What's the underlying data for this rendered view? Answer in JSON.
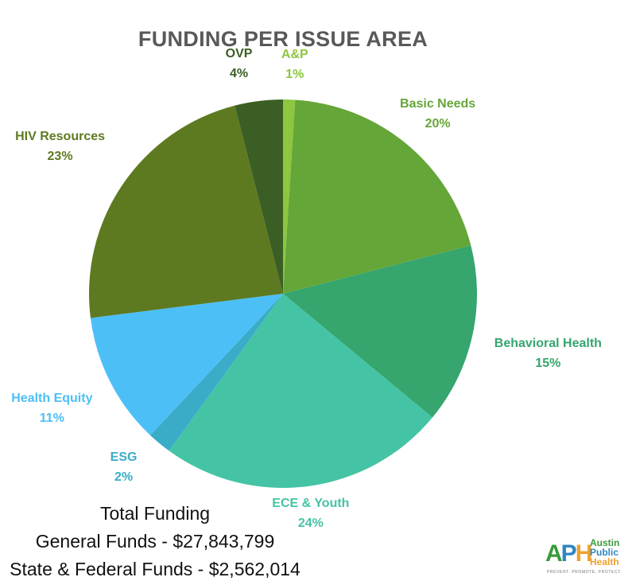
{
  "chart_data": {
    "type": "pie",
    "title": "FUNDING PER ISSUE AREA",
    "slices": [
      {
        "label": "A&P",
        "value": 1,
        "value_label": "1%",
        "color": "#8DC63F",
        "label_color": "#8DC63F"
      },
      {
        "label": "Basic Needs",
        "value": 20,
        "value_label": "20%",
        "color": "#65A638",
        "label_color": "#65A638"
      },
      {
        "label": "Behavioral Health",
        "value": 15,
        "value_label": "15%",
        "color": "#36A56E",
        "label_color": "#36A56E"
      },
      {
        "label": "ECE & Youth",
        "value": 24,
        "value_label": "24%",
        "color": "#44C4A4",
        "label_color": "#44C4A4"
      },
      {
        "label": "ESG",
        "value": 2,
        "value_label": "2%",
        "color": "#3AACC8",
        "label_color": "#3AACC8"
      },
      {
        "label": "Health Equity",
        "value": 11,
        "value_label": "11%",
        "color": "#4DBFF7",
        "label_color": "#4DBFF7"
      },
      {
        "label": "HIV Resources",
        "value": 23,
        "value_label": "23%",
        "color": "#5E7A21",
        "label_color": "#5E7A21"
      },
      {
        "label": "OVP",
        "value": 4,
        "value_label": "4%",
        "color": "#3A5E24",
        "label_color": "#3A5E24"
      }
    ]
  },
  "totals": {
    "heading": "Total Funding",
    "general": "General Funds - $27,843,799",
    "state_federal": "State & Federal Funds - $2,562,014"
  },
  "logo": {
    "mark": "APH",
    "line1": "Austin",
    "line2": "Public",
    "line3": "Health",
    "tagline": "PREVENT. PROMOTE. PROTECT.",
    "colors": {
      "a": "#3a9a3a",
      "p": "#2e86c1",
      "h": "#f0a030"
    }
  }
}
